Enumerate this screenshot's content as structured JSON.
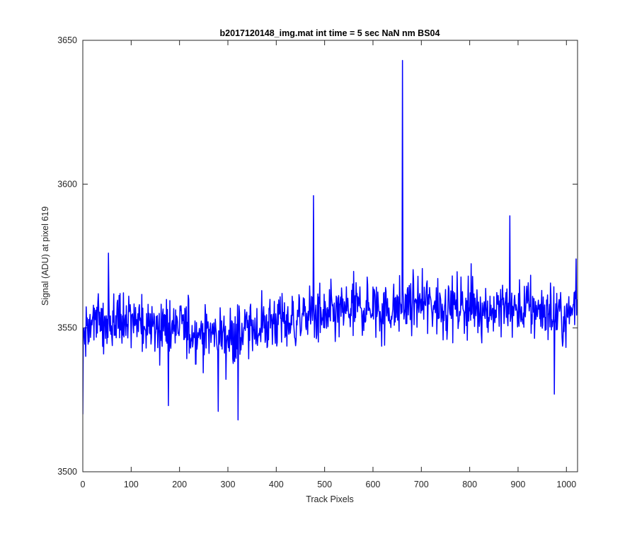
{
  "chart_data": {
    "type": "line",
    "title": "b2017120148_img.mat int time = 5 sec  NaN nm BS04",
    "xlabel": "Track Pixels",
    "ylabel": "Signal (ADU) at pixel 619",
    "xlim": [
      0,
      1023
    ],
    "ylim": [
      3500,
      3650
    ],
    "xticks": [
      0,
      100,
      200,
      300,
      400,
      500,
      600,
      700,
      800,
      900,
      1000
    ],
    "yticks": [
      3500,
      3550,
      3600,
      3650
    ],
    "grid": false,
    "line_color": "#0000ff",
    "series": [
      {
        "x": [
          0,
          25,
          50,
          75,
          100,
          125,
          150,
          175,
          200,
          225,
          250,
          275,
          300,
          325,
          350,
          375,
          400,
          425,
          450,
          475,
          500,
          525,
          550,
          575,
          600,
          625,
          650,
          675,
          700,
          725,
          750,
          775,
          800,
          825,
          850,
          875,
          900,
          925,
          950,
          975,
          1000,
          1023
        ],
        "values": [
          3552,
          3553,
          3552,
          3553,
          3552,
          3551,
          3552,
          3550,
          3550,
          3549,
          3548,
          3548,
          3547,
          3548,
          3550,
          3551,
          3553,
          3552,
          3553,
          3555,
          3553,
          3555,
          3556,
          3557,
          3557,
          3556,
          3557,
          3558,
          3559,
          3558,
          3558,
          3557,
          3558,
          3557,
          3556,
          3557,
          3556,
          3557,
          3556,
          3555,
          3553,
          3560
        ]
      }
    ],
    "notable_points": [
      {
        "x": 0,
        "y": 3520
      },
      {
        "x": 53,
        "y": 3576
      },
      {
        "x": 177,
        "y": 3523
      },
      {
        "x": 280,
        "y": 3521
      },
      {
        "x": 321,
        "y": 3518
      },
      {
        "x": 477,
        "y": 3596
      },
      {
        "x": 661,
        "y": 3643
      },
      {
        "x": 883,
        "y": 3589
      },
      {
        "x": 975,
        "y": 3527
      },
      {
        "x": 1020,
        "y": 3574
      }
    ]
  }
}
